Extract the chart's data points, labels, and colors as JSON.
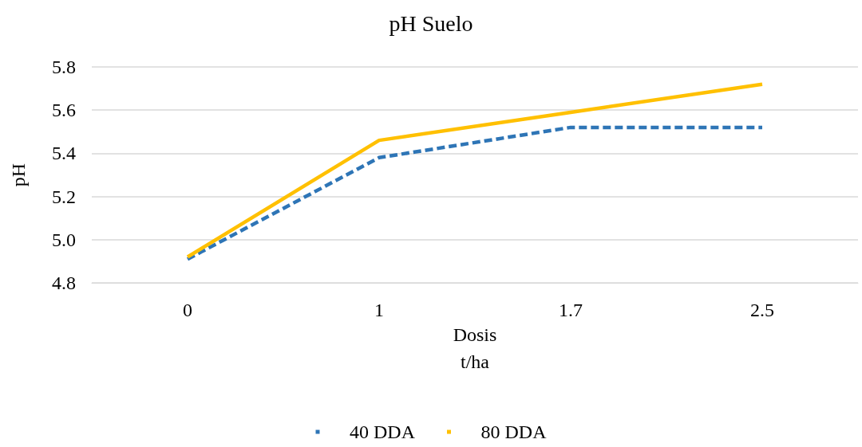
{
  "chart_data": {
    "type": "line",
    "title": "pH Suelo",
    "xlabel": "Dosis\nt/ha",
    "ylabel": "pH",
    "categories": [
      "0",
      "1",
      "1.7",
      "2.5"
    ],
    "series": [
      {
        "name": "40 DDA",
        "color": "#2e75b6",
        "line_style": "dashed",
        "values": [
          4.91,
          5.38,
          5.52,
          5.52
        ]
      },
      {
        "name": "80 DDA",
        "color": "#ffc000",
        "line_style": "solid",
        "values": [
          4.92,
          5.46,
          5.59,
          5.72
        ]
      }
    ],
    "ylim": [
      4.8,
      5.8
    ],
    "yticks": [
      4.8,
      {
        "value": 5,
        "label": "5.0"
      },
      5.2,
      5.4,
      5.6,
      5.8
    ],
    "grid": "y",
    "legend": "bottom",
    "marker": "none"
  }
}
